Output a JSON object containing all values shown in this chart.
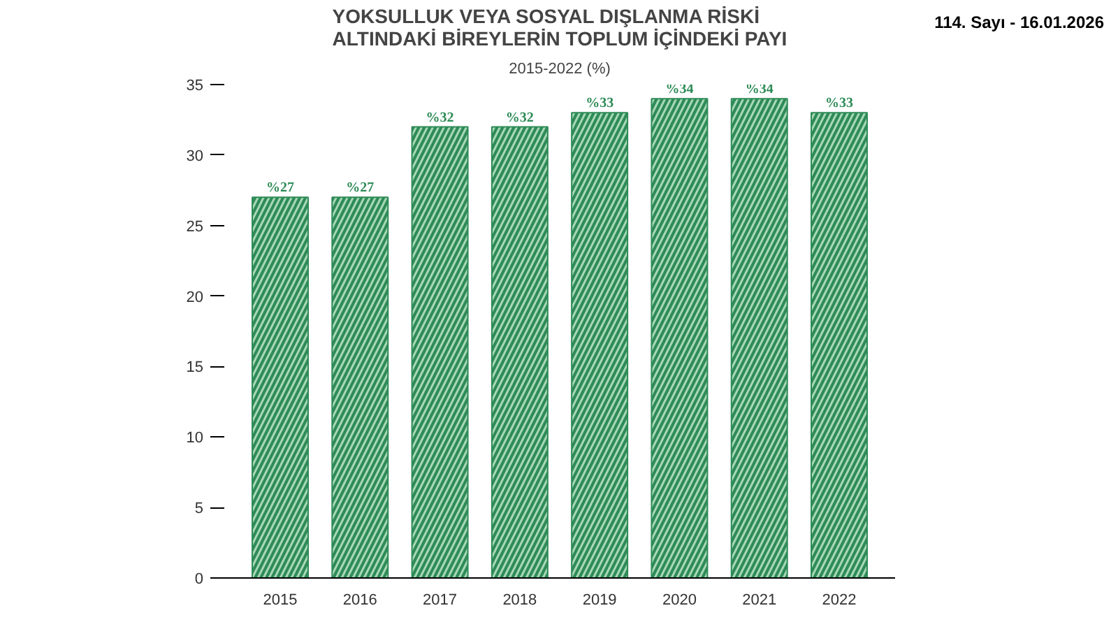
{
  "chart_data": {
    "type": "bar",
    "title": "YOKSULLUK VEYA SOSYAL DIŞLANMA RİSKİ\nALTINDAKİ BİREYLERİN TOPLUM İÇİNDEKİ PAYI",
    "subtitle": "2015-2022 (%)",
    "categories": [
      "2015",
      "2016",
      "2017",
      "2018",
      "2019",
      "2020",
      "2021",
      "2022"
    ],
    "values": [
      27,
      27,
      32,
      32,
      33,
      34,
      34,
      33
    ],
    "value_labels": [
      "%27",
      "%27",
      "%32",
      "%32",
      "%33",
      "%34",
      "%34",
      "%33"
    ],
    "color": "#2e8b57",
    "ylim": [
      0,
      35
    ],
    "yticks": [
      0,
      5,
      10,
      15,
      20,
      25,
      30,
      35
    ],
    "grid": false,
    "annotations": [
      "114. Sayı - 16.01.2026"
    ]
  }
}
